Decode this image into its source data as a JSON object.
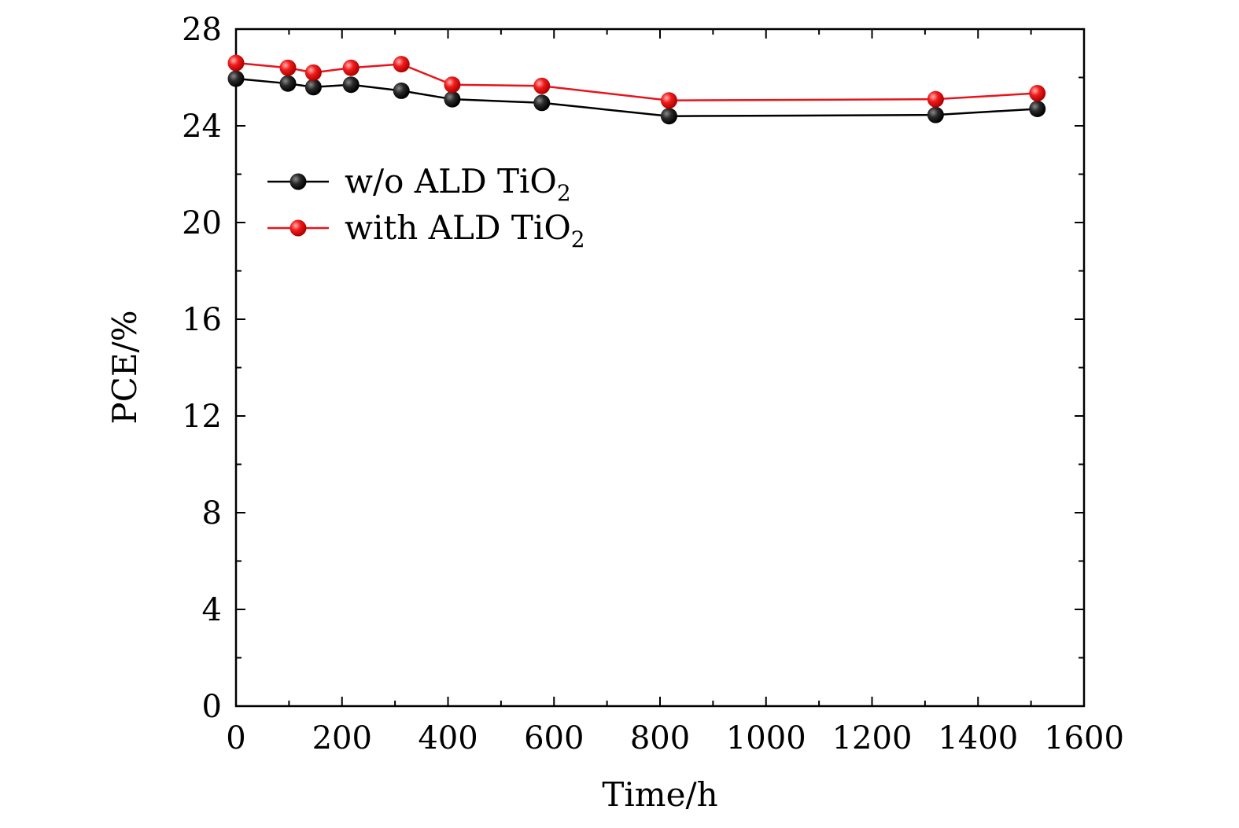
{
  "chart_data": {
    "type": "line",
    "xlabel": "Time/h",
    "ylabel": "PCE/%",
    "xlim": [
      0,
      1600
    ],
    "ylim": [
      0,
      28
    ],
    "xticks": [
      0,
      200,
      400,
      600,
      800,
      1000,
      1200,
      1400,
      1600
    ],
    "yticks": [
      0,
      4,
      8,
      12,
      16,
      20,
      24,
      28
    ],
    "xtick_labels": [
      "0",
      "200",
      "400",
      "600",
      "800",
      "1000",
      "1200",
      "1400",
      "1600"
    ],
    "ytick_labels": [
      "0",
      "4",
      "8",
      "12",
      "16",
      "20",
      "24",
      "28"
    ],
    "x": [
      0,
      98,
      146,
      217,
      312,
      408,
      577,
      817,
      1320,
      1512
    ],
    "grid": false,
    "legend_position": "upper-left",
    "series": [
      {
        "name": "w/o ALD TiO",
        "name_subscript": "2",
        "color": "#000000",
        "marker_color": "#111111",
        "values": [
          25.95,
          25.75,
          25.6,
          25.7,
          25.45,
          25.1,
          24.95,
          24.4,
          24.45,
          24.7
        ]
      },
      {
        "name": "with ALD TiO",
        "name_subscript": "2",
        "color": "#e8141b",
        "marker_color": "#e8141b",
        "values": [
          26.6,
          26.4,
          26.2,
          26.4,
          26.55,
          25.7,
          25.65,
          25.05,
          25.1,
          25.35
        ]
      }
    ]
  }
}
